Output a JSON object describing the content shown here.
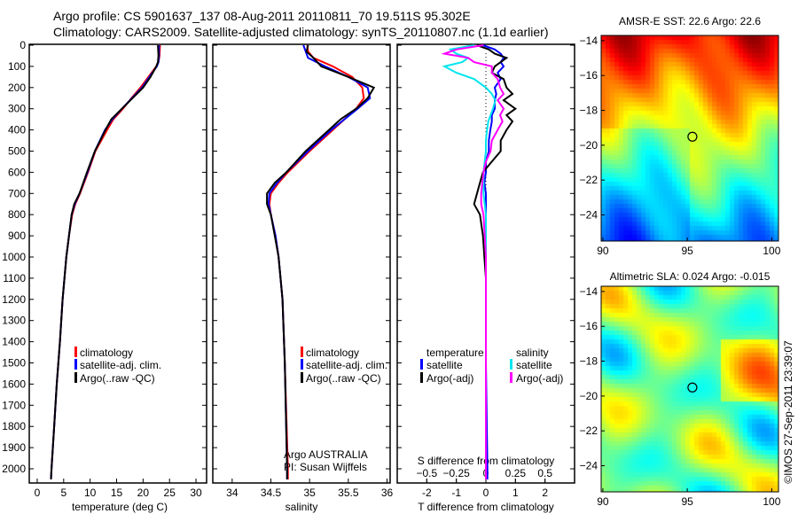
{
  "header": {
    "line1": "Argo profile: CS 5901637_137 08-Aug-2011 20110811_70 19.511S 95.302E",
    "line2": "Climatology: CARS2009. Satellite-adjusted climatology: synTS_20110807.nc (1.1d earlier)"
  },
  "footer": {
    "credit": "©IMOS 27-Sep-2011 23:39:07"
  },
  "colors": {
    "climatology": "#ff0000",
    "satellite": "#0000ff",
    "argo": "#000000",
    "s_satellite": "#00e5ee",
    "s_argo": "#ff00ff"
  },
  "chart_data": [
    {
      "type": "line",
      "id": "temperature",
      "xlabel": "temperature (deg C)",
      "xlim": [
        -1.5,
        32
      ],
      "xticks": [
        0,
        5,
        10,
        15,
        20,
        25,
        30
      ],
      "ylim": [
        2070,
        0
      ],
      "yticks": [
        0,
        100,
        200,
        300,
        400,
        500,
        600,
        700,
        800,
        900,
        1000,
        1100,
        1200,
        1300,
        1400,
        1500,
        1600,
        1700,
        1800,
        1900,
        2000
      ],
      "legend": [
        "climatology",
        "satellite-adj. clim.",
        "Argo(..raw -QC)"
      ],
      "depth": [
        0,
        50,
        80,
        100,
        150,
        200,
        250,
        300,
        350,
        400,
        500,
        600,
        700,
        750,
        800,
        900,
        1000,
        1200,
        1400,
        1600,
        1800,
        2000,
        2050
      ],
      "series": [
        {
          "name": "climatology",
          "values": [
            23.2,
            23.1,
            22.9,
            22.5,
            21,
            19.5,
            17.8,
            16.2,
            14.4,
            13.2,
            11,
            9.6,
            8.1,
            7.2,
            6.6,
            6.0,
            5.5,
            4.8,
            4.3,
            3.7,
            3.2,
            2.7,
            2.6
          ]
        },
        {
          "name": "satellite-adj. clim.",
          "values": [
            23.0,
            23.0,
            22.9,
            22.6,
            21.2,
            19.8,
            17.9,
            16,
            14.2,
            12.8,
            10.9,
            9.5,
            8.0,
            7.1,
            6.5,
            6.0,
            5.5,
            4.8,
            4.3,
            3.7,
            3.2,
            2.7,
            2.6
          ]
        },
        {
          "name": "Argo(..raw -QC)",
          "values": [
            22.8,
            22.9,
            22.8,
            22.5,
            21.4,
            20.0,
            18.0,
            16.0,
            14.0,
            12.9,
            10.9,
            9.4,
            8.0,
            7.0,
            6.5,
            6.0,
            5.5,
            4.8,
            4.3,
            3.7,
            3.2,
            2.7,
            2.6
          ]
        }
      ]
    },
    {
      "type": "line",
      "id": "salinity",
      "xlabel": "salinity",
      "xlim": [
        33.75,
        36.04
      ],
      "xticks": [
        34,
        34.5,
        35,
        35.5,
        36
      ],
      "ylim": [
        2070,
        0
      ],
      "legend": [
        "climatology",
        "satellite-adj. clim.",
        "Argo(..raw -QC)"
      ],
      "annotation": [
        "Argo AUSTRALIA",
        "PI: Susan Wijffels"
      ],
      "depth": [
        0,
        30,
        60,
        100,
        150,
        200,
        250,
        300,
        350,
        400,
        500,
        600,
        650,
        700,
        750,
        800,
        900,
        1000,
        1200,
        1500,
        2000,
        2050
      ],
      "series": [
        {
          "name": "climatology",
          "values": [
            34.97,
            34.98,
            35.05,
            35.3,
            35.55,
            35.68,
            35.7,
            35.6,
            35.45,
            35.3,
            35.0,
            34.72,
            34.6,
            34.5,
            34.48,
            34.5,
            34.56,
            34.6,
            34.65,
            34.68,
            34.72,
            34.72
          ]
        },
        {
          "name": "satellite-adj. clim.",
          "values": [
            34.92,
            34.95,
            34.98,
            35.2,
            35.5,
            35.75,
            35.78,
            35.62,
            35.45,
            35.28,
            34.98,
            34.7,
            34.58,
            34.48,
            34.47,
            34.5,
            34.56,
            34.6,
            34.65,
            34.68,
            34.71,
            34.71
          ]
        },
        {
          "name": "Argo(..raw -QC)",
          "values": [
            34.98,
            34.96,
            35.05,
            35.15,
            35.5,
            35.83,
            35.75,
            35.6,
            35.4,
            35.25,
            34.95,
            34.7,
            34.55,
            34.45,
            34.45,
            34.5,
            34.55,
            34.6,
            34.65,
            34.68,
            34.71,
            34.71
          ]
        }
      ]
    },
    {
      "type": "line",
      "id": "difference",
      "xlabel": "T difference from climatology",
      "xlabel2": "S difference from climatology",
      "xlim": [
        -3,
        3
      ],
      "xticks": [
        -2,
        -1,
        0,
        1,
        2
      ],
      "s_xlim": [
        -1.5,
        1.5
      ],
      "s_xticks": [
        "-0.5",
        "-0.25",
        "0",
        "0.25",
        "0.5"
      ],
      "ylim": [
        2070,
        0
      ],
      "legend_temperature": {
        "title": "temperature",
        "items": [
          "satellite",
          "Argo(-adj)"
        ]
      },
      "legend_salinity": {
        "title": "salinity",
        "items": [
          "satellite",
          "Argo(-adj)"
        ]
      },
      "depth": [
        0,
        20,
        40,
        60,
        80,
        100,
        130,
        160,
        200,
        230,
        260,
        300,
        330,
        360,
        400,
        450,
        500,
        550,
        600,
        650,
        700,
        750,
        800,
        900,
        1000,
        1100,
        1500,
        2000,
        2050
      ],
      "series": [
        {
          "name": "T satellite",
          "values": [
            -0.1,
            0.3,
            0.5,
            0.6,
            0.5,
            0.6,
            0.4,
            0.5,
            0.3,
            0.35,
            0.3,
            0.3,
            0.2,
            0.2,
            0.15,
            0.1,
            0.1,
            0.0,
            0.0,
            -0.05,
            0.0,
            0.0,
            0.0,
            0.0,
            0.0,
            0.0,
            0.0,
            0.05,
            0.05
          ]
        },
        {
          "name": "T Argo(-adj)",
          "values": [
            -0.3,
            0.1,
            0.3,
            0.7,
            0.5,
            0.3,
            0.2,
            0.6,
            0.7,
            0.9,
            0.6,
            1.0,
            0.7,
            0.9,
            0.7,
            0.5,
            0.5,
            0.2,
            -0.1,
            -0.2,
            -0.3,
            -0.4,
            -0.2,
            -0.1,
            -0.05,
            0.0,
            0.0,
            0.0,
            0.0
          ]
        },
        {
          "name": "S satellite",
          "values": [
            -0.1,
            -0.3,
            -0.25,
            -0.15,
            -0.2,
            -0.35,
            -0.25,
            -0.1,
            0.0,
            0.05,
            0.08,
            0.06,
            0.04,
            0.02,
            0.01,
            0.0,
            0.0,
            -0.01,
            -0.02,
            -0.02,
            -0.02,
            -0.01,
            0.0,
            0.0,
            0.0,
            0.0,
            0.0,
            0.0,
            0.0
          ]
        },
        {
          "name": "S Argo(-adj)",
          "values": [
            -0.02,
            -0.25,
            -0.35,
            -0.15,
            -0.1,
            0.05,
            0.05,
            0.1,
            0.12,
            0.15,
            0.1,
            0.15,
            0.12,
            0.14,
            0.1,
            0.05,
            0.04,
            0.0,
            -0.02,
            -0.03,
            -0.04,
            -0.04,
            -0.02,
            -0.01,
            0.0,
            0.0,
            0.0,
            0.0,
            0.0
          ]
        }
      ]
    },
    {
      "type": "heatmap",
      "id": "sst_map",
      "title": "AMSR-E SST: 22.6  Argo: 22.6",
      "xticks": [
        90,
        95,
        100
      ],
      "yticks": [
        -14,
        -16,
        -18,
        -20,
        -22,
        -24
      ],
      "xlim": [
        89.9,
        100.4
      ],
      "ylim": [
        -25.5,
        -13.7
      ],
      "float_position": [
        95.302,
        -19.511
      ]
    },
    {
      "type": "heatmap",
      "id": "sla_map",
      "title": "Altimetric SLA: 0.024  Argo: -0.015",
      "xticks": [
        90,
        95,
        100
      ],
      "yticks": [
        -14,
        -16,
        -18,
        -20,
        -22,
        -24
      ],
      "xlim": [
        89.9,
        100.4
      ],
      "ylim": [
        -25.5,
        -13.7
      ],
      "float_position": [
        95.302,
        -19.511
      ]
    }
  ]
}
